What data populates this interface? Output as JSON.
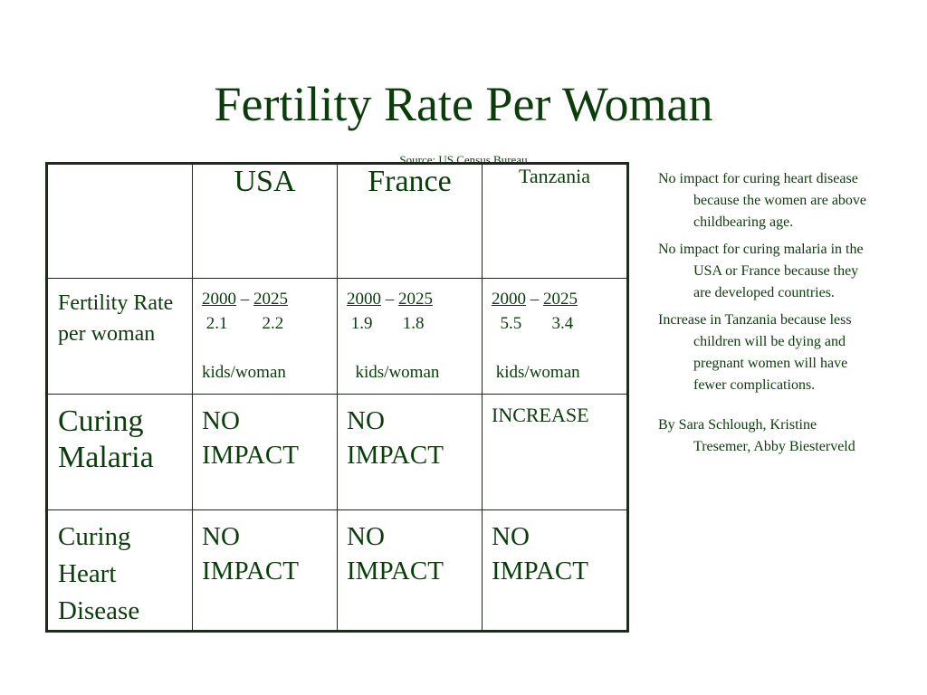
{
  "slide": {
    "title": "Fertility Rate Per Woman",
    "source": "Source: US Census Bureau"
  },
  "table": {
    "headers": [
      "",
      "USA",
      "France",
      "Tanzania"
    ],
    "fertility_row": {
      "label": "Fertility Rate per woman",
      "unit": "kids/woman",
      "cells": [
        {
          "year_start": "2000",
          "dash": "–",
          "year_end": "2025",
          "v_start": "2.1",
          "v_end": "2.2"
        },
        {
          "year_start": "2000",
          "dash": "–",
          "year_end": "2025",
          "v_start": "1.9",
          "v_end": "1.8"
        },
        {
          "year_start": "2000",
          "dash": "–",
          "year_end": "2025",
          "v_start": "5.5",
          "v_end": "3.4"
        }
      ]
    },
    "malaria_row": {
      "label": "Curing Malaria",
      "cells": [
        "NO IMPACT",
        "NO IMPACT",
        "INCREASE"
      ]
    },
    "heart_row": {
      "label": "Curing Heart Disease",
      "cells": [
        "NO IMPACT",
        "NO IMPACT",
        "NO IMPACT"
      ]
    }
  },
  "notes": [
    "No impact for curing heart disease because the women are above childbearing age.",
    "No impact for curing malaria in the USA or France because they are developed countries.",
    "Increase in Tanzania because less children will be dying and pregnant women will have fewer complications."
  ],
  "authors": "By Sara Schlough, Kristine Tresemer, Abby Biesterveld",
  "colors": {
    "text": "#0a3d0a",
    "border": "#1f2a1f",
    "background": "#ffffff"
  }
}
